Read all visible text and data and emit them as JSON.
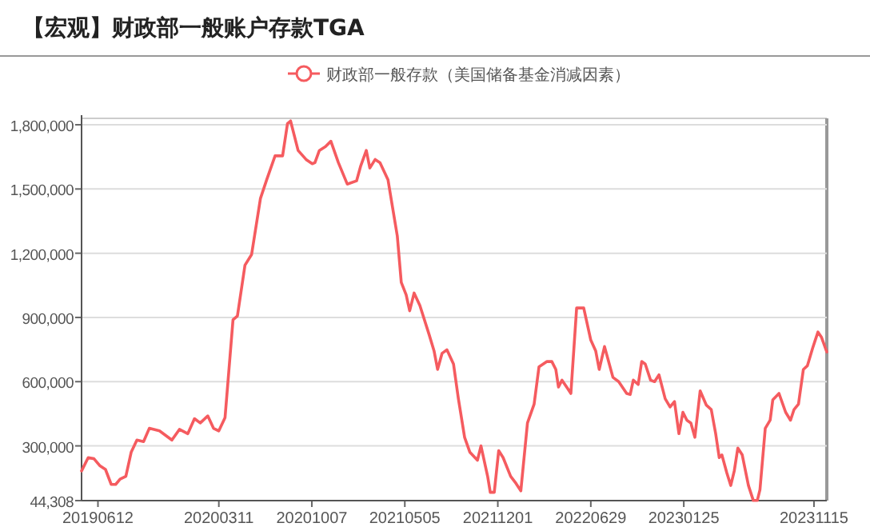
{
  "chart_data": {
    "type": "line",
    "title": "【宏观】财政部一般账户存款TGA",
    "x": [
      "2019-05-06",
      "2019-05-21",
      "2019-06-03",
      "2019-06-16",
      "2019-06-29",
      "2019-07-12",
      "2019-07-22",
      "2019-08-01",
      "2019-08-14",
      "2019-08-26",
      "2019-09-08",
      "2019-09-23",
      "2019-10-06",
      "2019-10-29",
      "2019-11-26",
      "2019-12-13",
      "2020-01-01",
      "2020-01-16",
      "2020-01-29",
      "2020-02-15",
      "2020-02-28",
      "2020-03-11",
      "2020-03-25",
      "2020-04-12",
      "2020-04-22",
      "2020-05-09",
      "2020-05-24",
      "2020-06-13",
      "2020-06-27",
      "2020-07-16",
      "2020-08-02",
      "2020-08-13",
      "2020-08-20",
      "2020-09-06",
      "2020-09-24",
      "2020-10-08",
      "2020-10-14",
      "2020-10-24",
      "2020-11-07",
      "2020-11-19",
      "2020-12-06",
      "2020-12-26",
      "2021-01-16",
      "2021-01-25",
      "2021-02-07",
      "2021-02-15",
      "2021-02-27",
      "2021-03-10",
      "2021-03-28",
      "2021-04-07",
      "2021-04-18",
      "2021-04-27",
      "2021-05-08",
      "2021-05-16",
      "2021-05-26",
      "2021-06-08",
      "2021-06-29",
      "2021-07-10",
      "2021-07-18",
      "2021-07-28",
      "2021-08-08",
      "2021-08-23",
      "2021-09-03",
      "2021-09-17",
      "2021-09-29",
      "2021-10-16",
      "2021-10-24",
      "2021-11-08",
      "2021-11-14",
      "2021-11-23",
      "2021-12-03",
      "2021-12-13",
      "2021-12-30",
      "2022-01-11",
      "2022-01-22",
      "2022-02-06",
      "2022-02-21",
      "2022-03-04",
      "2022-03-22",
      "2022-04-02",
      "2022-04-11",
      "2022-04-17",
      "2022-04-25",
      "2022-05-07",
      "2022-05-15",
      "2022-05-28",
      "2022-06-13",
      "2022-06-29",
      "2022-07-10",
      "2022-07-18",
      "2022-07-30",
      "2022-08-18",
      "2022-08-31",
      "2022-09-18",
      "2022-09-26",
      "2022-10-03",
      "2022-10-14",
      "2022-10-22",
      "2022-10-30",
      "2022-11-11",
      "2022-11-20",
      "2022-11-30",
      "2022-12-14",
      "2022-12-25",
      "2023-01-04",
      "2023-01-14",
      "2023-01-23",
      "2023-02-01",
      "2023-02-10",
      "2023-02-19",
      "2023-03-03",
      "2023-03-17",
      "2023-03-28",
      "2023-04-07",
      "2023-04-15",
      "2023-04-21",
      "2023-05-02",
      "2023-05-11",
      "2023-05-19",
      "2023-05-27",
      "2023-06-06",
      "2023-06-20",
      "2023-07-01",
      "2023-07-10",
      "2023-07-16",
      "2023-07-28",
      "2023-08-08",
      "2023-08-14",
      "2023-08-28",
      "2023-09-12",
      "2023-09-23",
      "2023-10-01",
      "2023-10-11",
      "2023-10-22",
      "2023-10-31",
      "2023-11-12",
      "2023-11-24",
      "2023-12-02",
      "2023-12-14"
    ],
    "series": [
      {
        "name": "财政部一般存款（美国储备基金消减因素）",
        "color": "#f55b5f",
        "values": [
          183000,
          245000,
          240000,
          208000,
          190000,
          120000,
          120000,
          145000,
          158000,
          270000,
          327000,
          320000,
          382000,
          370000,
          327000,
          377000,
          357000,
          427000,
          407000,
          440000,
          382000,
          370000,
          432000,
          889000,
          907000,
          1144000,
          1194000,
          1456000,
          1543000,
          1655000,
          1655000,
          1805000,
          1818000,
          1680000,
          1638000,
          1618000,
          1623000,
          1680000,
          1698000,
          1723000,
          1623000,
          1523000,
          1538000,
          1605000,
          1680000,
          1598000,
          1638000,
          1623000,
          1543000,
          1418000,
          1281000,
          1064000,
          1006000,
          931000,
          1014000,
          956000,
          819000,
          744000,
          657000,
          732000,
          749000,
          682000,
          520000,
          340000,
          270000,
          233000,
          300000,
          158000,
          83000,
          83000,
          278000,
          245000,
          158000,
          125000,
          90000,
          407000,
          495000,
          669000,
          694000,
          694000,
          657000,
          575000,
          607000,
          570000,
          545000,
          944000,
          944000,
          794000,
          744000,
          657000,
          764000,
          620000,
          600000,
          545000,
          540000,
          607000,
          587000,
          694000,
          682000,
          607000,
          600000,
          632000,
          520000,
          482000,
          507000,
          357000,
          457000,
          420000,
          407000,
          340000,
          557000,
          490000,
          470000,
          357000,
          245000,
          258000,
          175000,
          115000,
          183000,
          290000,
          258000,
          115000,
          45000,
          45000,
          95000,
          382000,
          420000,
          515000,
          545000,
          457000,
          420000,
          470000,
          495000,
          657000,
          674000,
          757000,
          832000,
          807000,
          739000
        ]
      }
    ],
    "xlim": [
      "2019-05-06",
      "2023-12-14"
    ],
    "xticks": [
      {
        "value": "2019-06-12",
        "label": "20190612"
      },
      {
        "value": "2020-03-11",
        "label": "20200311"
      },
      {
        "value": "2020-10-07",
        "label": "20201007"
      },
      {
        "value": "2021-05-05",
        "label": "20210505"
      },
      {
        "value": "2021-12-01",
        "label": "20211201"
      },
      {
        "value": "2022-06-29",
        "label": "20220629"
      },
      {
        "value": "2023-01-25",
        "label": "20230125"
      },
      {
        "value": "2023-11-15",
        "label": "20231115"
      }
    ],
    "ylim": [
      44308,
      1830000
    ],
    "yticks": [
      {
        "value": 44308,
        "label": "44,308"
      },
      {
        "value": 300000,
        "label": "300,000"
      },
      {
        "value": 600000,
        "label": "600,000"
      },
      {
        "value": 900000,
        "label": "900,000"
      },
      {
        "value": 1200000,
        "label": "1,200,000"
      },
      {
        "value": 1500000,
        "label": "1,500,000"
      },
      {
        "value": 1800000,
        "label": "1,800,000"
      }
    ],
    "grid": "y",
    "legend": "top",
    "marker": "none",
    "line_style": "solid"
  }
}
